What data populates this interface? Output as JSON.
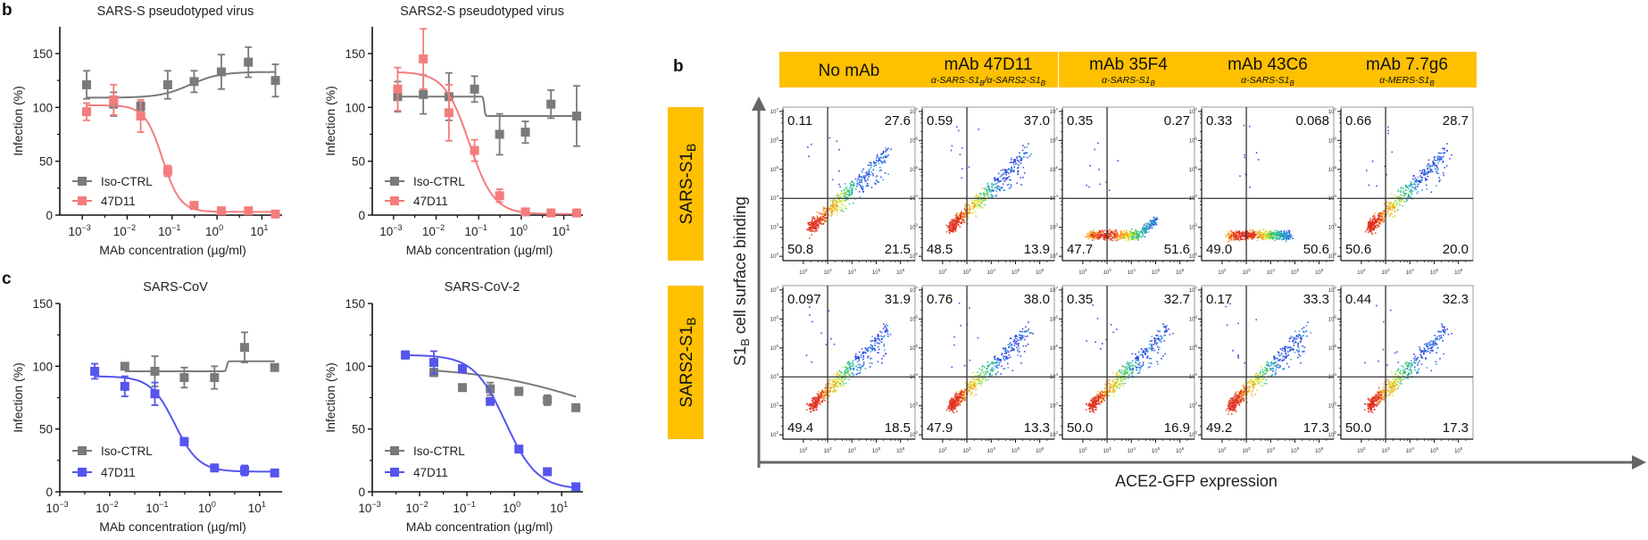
{
  "figure": {
    "panel_letters": {
      "left_b": "b",
      "left_c": "c",
      "right_b": "b"
    },
    "legend_labels": {
      "control": "Iso-CTRL",
      "antibody": "47D11"
    },
    "colors": {
      "control": "#7a7a7a",
      "antibody_pseudo": "#f47c7c",
      "antibody_live": "#5555ee",
      "header_fill": "#ffc000",
      "axis": "#111111",
      "gate_line": "#333333"
    }
  },
  "chart_data": [
    {
      "id": "sars-s-pseudo",
      "type": "line",
      "title": "SARS-S pseudotyped virus",
      "xlabel": "MAb concentration (µg/ml)",
      "ylabel": "Infection (%)",
      "xscale": "log10",
      "xlim_exp": [
        -3.5,
        1.45
      ],
      "ylim": [
        0,
        175
      ],
      "xticks_exp": [
        -3,
        -2,
        -1,
        0,
        1
      ],
      "yticks": [
        0,
        50,
        100,
        150
      ],
      "legend": "bottom-left",
      "series": [
        {
          "name": "Iso-CTRL",
          "color_key": "control",
          "x": [
            0.00125,
            0.005,
            0.02,
            0.08,
            0.31,
            1.25,
            5,
            20
          ],
          "y": [
            121,
            103,
            101,
            121,
            124,
            133,
            142,
            125
          ],
          "err": [
            13,
            11,
            4,
            13,
            10,
            16,
            14,
            15
          ],
          "fit": {
            "bottom": 109,
            "top": 133,
            "ec50": 0.25,
            "hill": 1.3
          }
        },
        {
          "name": "47D11",
          "color_key": "antibody_pseudo",
          "x": [
            0.00125,
            0.005,
            0.02,
            0.08,
            0.31,
            1.25,
            5,
            20
          ],
          "y": [
            96,
            107,
            92,
            41,
            9,
            4,
            4,
            1
          ],
          "err": [
            8,
            14,
            15,
            5,
            2,
            2,
            2,
            1
          ],
          "fit": {
            "bottom": 3,
            "top": 102,
            "ec50": 0.061,
            "hill": -2.2
          }
        }
      ]
    },
    {
      "id": "sars2-s-pseudo",
      "type": "line",
      "title": "SARS2-S pseudotyped virus",
      "xlabel": "MAb concentration (µg/ml)",
      "ylabel": "Infection (%)",
      "xscale": "log10",
      "xlim_exp": [
        -3.5,
        1.45
      ],
      "ylim": [
        0,
        175
      ],
      "xticks_exp": [
        -3,
        -2,
        -1,
        0,
        1
      ],
      "yticks": [
        0,
        50,
        100,
        150
      ],
      "legend": "bottom-left",
      "series": [
        {
          "name": "Iso-CTRL",
          "color_key": "control",
          "x": [
            0.00125,
            0.005,
            0.02,
            0.08,
            0.31,
            1.25,
            5,
            20
          ],
          "y": [
            110,
            112,
            110,
            117,
            75,
            77,
            103,
            92
          ],
          "err": [
            14,
            18,
            22,
            12,
            19,
            10,
            13,
            28
          ],
          "fit": {
            "bottom": 92,
            "top": 110,
            "ec50": 0.135,
            "hill": -40
          }
        },
        {
          "name": "47D11",
          "color_key": "antibody_pseudo",
          "x": [
            0.00125,
            0.005,
            0.02,
            0.08,
            0.31,
            1.25,
            5,
            20
          ],
          "y": [
            117,
            145,
            95,
            60,
            18,
            3,
            2,
            2
          ],
          "err": [
            20,
            28,
            26,
            10,
            6,
            2,
            1,
            1
          ],
          "fit": {
            "bottom": 1,
            "top": 133,
            "ec50": 0.06,
            "hill": -1.5
          }
        }
      ]
    },
    {
      "id": "sars-cov",
      "type": "line",
      "title": "SARS-CoV",
      "xlabel": "MAb concentration (µg/ml)",
      "ylabel": "Infection (%)",
      "xscale": "log10",
      "xlim_exp": [
        -3,
        1.45
      ],
      "ylim": [
        0,
        150
      ],
      "xticks_exp": [
        -3,
        -2,
        -1,
        0,
        1
      ],
      "yticks": [
        0,
        50,
        100,
        150
      ],
      "legend": "bottom-left",
      "series": [
        {
          "name": "Iso-CTRL",
          "color_key": "control",
          "x": [
            0.02,
            0.08,
            0.31,
            1.25,
            5,
            20
          ],
          "y": [
            100,
            96,
            91,
            91,
            115,
            99
          ],
          "err": [
            2,
            12,
            8,
            9,
            12,
            2
          ],
          "fit": {
            "bottom": 96,
            "top": 104,
            "ec50": 2.2,
            "hill": 40,
            "xstart": 0.02
          }
        },
        {
          "name": "47D11",
          "color_key": "antibody_live",
          "x": [
            0.005,
            0.02,
            0.08,
            0.31,
            1.25,
            5,
            20
          ],
          "y": [
            96,
            84,
            78,
            40,
            19,
            17,
            15
          ],
          "err": [
            6,
            8,
            9,
            3,
            2,
            4,
            2
          ],
          "fit": {
            "bottom": 16,
            "top": 92,
            "ec50": 0.2,
            "hill": -1.8,
            "xstart": 0.005
          }
        }
      ]
    },
    {
      "id": "sars-cov-2",
      "type": "line",
      "title": "SARS-CoV-2",
      "xlabel": "MAb concentration (µg/ml)",
      "ylabel": "Infection (%)",
      "xscale": "log10",
      "xlim_exp": [
        -3,
        1.45
      ],
      "ylim": [
        0,
        150
      ],
      "xticks_exp": [
        -3,
        -2,
        -1,
        0,
        1
      ],
      "yticks": [
        0,
        50,
        100,
        150
      ],
      "legend": "bottom-left",
      "series": [
        {
          "name": "Iso-CTRL",
          "color_key": "control",
          "x": [
            0.02,
            0.08,
            0.31,
            1.25,
            5,
            20
          ],
          "y": [
            95,
            83,
            82,
            80,
            73,
            67
          ],
          "err": [
            3,
            2,
            5,
            3,
            4,
            2
          ],
          "fit": {
            "bottom": 40,
            "top": 100,
            "ec50": 60,
            "hill": -0.35,
            "xstart": 0.02
          }
        },
        {
          "name": "47D11",
          "color_key": "antibody_live",
          "x": [
            0.005,
            0.02,
            0.08,
            0.31,
            1.25,
            5,
            20
          ],
          "y": [
            109,
            103,
            98,
            72,
            34,
            16,
            4
          ],
          "err": [
            3,
            9,
            3,
            2,
            2,
            2,
            1
          ],
          "fit": {
            "bottom": 2,
            "top": 109,
            "ec50": 0.65,
            "hill": -1.3,
            "xstart": 0.005
          }
        }
      ]
    },
    {
      "id": "flow-cytometry",
      "type": "scatter",
      "xlabel": "ACE2-GFP expression",
      "ylabel_main": "S1",
      "ylabel_sub": "B",
      "ylabel_rest": " cell surface binding",
      "x_tick_exps": [
        2,
        3,
        4,
        5,
        6
      ],
      "y_tick_exps": [
        2,
        3,
        4,
        5,
        6,
        7
      ],
      "gate": {
        "x_exp": 3,
        "y_exp": 4
      },
      "columns": [
        {
          "title": "No mAb",
          "subtitle": "",
          "pattern": "diag"
        },
        {
          "title": "mAb 47D11",
          "subtitle": "α-SARS-S1B/α-SARS2-S1B",
          "pattern_rows": [
            "diag",
            "diag"
          ]
        },
        {
          "title": "mAb 35F4",
          "subtitle": "α-SARS-S1B",
          "pattern_rows": [
            "flat",
            "diag"
          ]
        },
        {
          "title": "mAb 43C6",
          "subtitle": "α-SARS-S1B",
          "pattern_rows": [
            "flat",
            "diag"
          ]
        },
        {
          "title": "mAb 7.7g6",
          "subtitle": "α-MERS-S1B",
          "pattern_rows": [
            "diag",
            "diag"
          ]
        }
      ],
      "subtitle_parts": [
        [],
        [
          {
            "t": "α-SARS-S1"
          },
          {
            "t": "B",
            "sub": true
          },
          {
            "t": "/α-SARS2-S1"
          },
          {
            "t": "B",
            "sub": true
          }
        ],
        [
          {
            "t": "α-SARS-S1"
          },
          {
            "t": "B",
            "sub": true
          }
        ],
        [
          {
            "t": "α-SARS-S1"
          },
          {
            "t": "B",
            "sub": true
          }
        ],
        [
          {
            "t": "α-MERS-S1"
          },
          {
            "t": "B",
            "sub": true
          }
        ]
      ],
      "rows": [
        {
          "label_main": "SARS-S1",
          "label_sub": "B",
          "quadrants": [
            {
              "ul": "0.11",
              "ur": "27.6",
              "ll": "50.8",
              "lr": "21.5",
              "pattern": "diag"
            },
            {
              "ul": "0.59",
              "ur": "37.0",
              "ll": "48.5",
              "lr": "13.9",
              "pattern": "diag"
            },
            {
              "ul": "0.35",
              "ur": "0.27",
              "ll": "47.7",
              "lr": "51.6",
              "pattern": "flat"
            },
            {
              "ul": "0.33",
              "ur": "0.068",
              "ll": "49.0",
              "lr": "50.6",
              "pattern": "flat2"
            },
            {
              "ul": "0.66",
              "ur": "28.7",
              "ll": "50.6",
              "lr": "20.0",
              "pattern": "diag"
            }
          ]
        },
        {
          "label_main": "SARS2-S1",
          "label_sub": "B",
          "quadrants": [
            {
              "ul": "0.097",
              "ur": "31.9",
              "ll": "49.4",
              "lr": "18.5",
              "pattern": "diag"
            },
            {
              "ul": "0.76",
              "ur": "38.0",
              "ll": "47.9",
              "lr": "13.3",
              "pattern": "diag"
            },
            {
              "ul": "0.35",
              "ur": "32.7",
              "ll": "50.0",
              "lr": "16.9",
              "pattern": "diag"
            },
            {
              "ul": "0.17",
              "ur": "33.3",
              "ll": "49.2",
              "lr": "17.3",
              "pattern": "diag"
            },
            {
              "ul": "0.44",
              "ur": "32.3",
              "ll": "50.0",
              "lr": "17.3",
              "pattern": "diag"
            }
          ]
        }
      ]
    }
  ]
}
